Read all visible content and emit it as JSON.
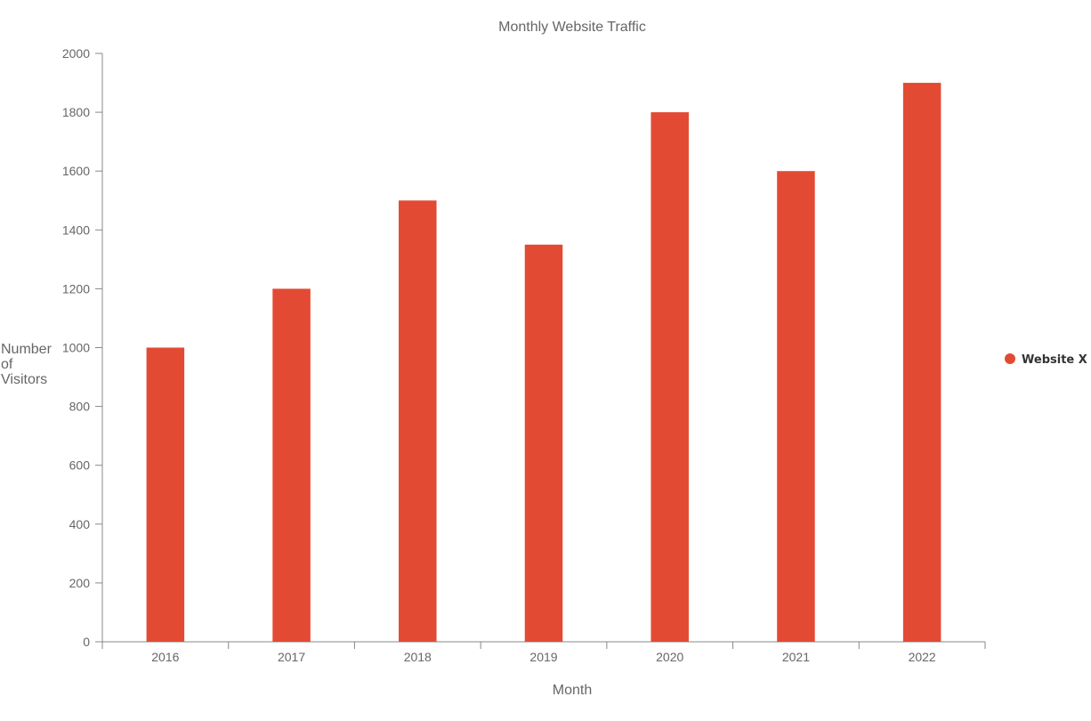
{
  "colors": {
    "bar": "#e34a33",
    "axis": "#888888",
    "text": "#666666"
  },
  "chart_data": {
    "type": "bar",
    "title": "Monthly Website Traffic",
    "xlabel": "Month",
    "ylabel": "Number of Visitors",
    "ylabel_lines": [
      "Number",
      "of",
      "Visitors"
    ],
    "categories": [
      "2016",
      "2017",
      "2018",
      "2019",
      "2020",
      "2021",
      "2022"
    ],
    "series": [
      {
        "name": "Website X",
        "values": [
          1000,
          1200,
          1500,
          1350,
          1800,
          1600,
          1900
        ]
      }
    ],
    "ylim": [
      0,
      2000
    ],
    "yticks": [
      0,
      200,
      400,
      600,
      800,
      1000,
      1200,
      1400,
      1600,
      1800,
      2000
    ],
    "grid": false,
    "legend": "right"
  }
}
